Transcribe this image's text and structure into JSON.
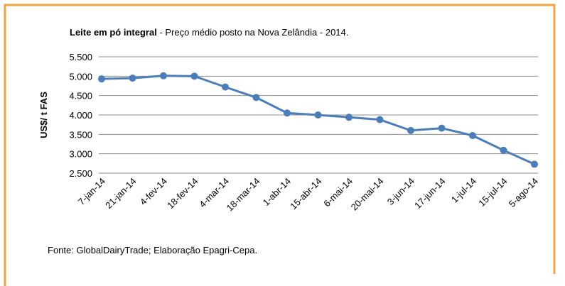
{
  "chart_data": {
    "type": "line",
    "title": "Leite em pó integral",
    "subtitle": "- Preço médio posto na Nova Zelândia - 2014.",
    "y_label": "US$/ t FAS",
    "source": "Fonte: GlobalDairyTrade; Elaboração Epagri-Cepa.",
    "categories": [
      "7-jan-14",
      "21-jan-14",
      "4-fev-14",
      "18-fev-14",
      "4-mar-14",
      "18-mar-14",
      "1-abr-14",
      "15-abr-14",
      "6-mai-14",
      "20-mai-14",
      "3-jun-14",
      "17-jun-14",
      "1-jul-14",
      "15-jul-14",
      "5-ago-14"
    ],
    "series": [
      {
        "name": "Preço médio",
        "color": "#4a7ebb",
        "values": [
          4930,
          4950,
          5010,
          5000,
          4720,
          4450,
          4050,
          4000,
          3940,
          3880,
          3600,
          3660,
          3470,
          3090,
          2730
        ]
      }
    ],
    "ylim": [
      2500,
      5500
    ],
    "yticks": [
      {
        "value": 2500,
        "label": "2.500"
      },
      {
        "value": 3000,
        "label": "3.000"
      },
      {
        "value": 3500,
        "label": "3.500"
      },
      {
        "value": 4000,
        "label": "4.000"
      },
      {
        "value": 4500,
        "label": "4.500"
      },
      {
        "value": 5000,
        "label": "5.000"
      },
      {
        "value": 5500,
        "label": "5.500"
      }
    ],
    "grid": true
  }
}
